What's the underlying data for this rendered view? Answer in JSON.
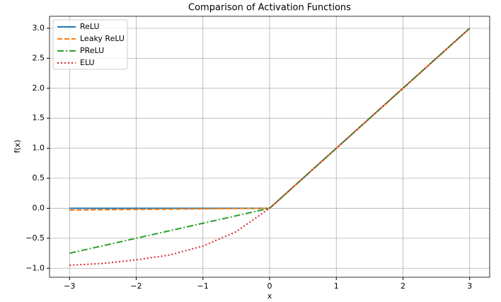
{
  "chart_data": {
    "type": "line",
    "title": "Comparison of Activation Functions",
    "x_label": "x",
    "y_label": "f(x)",
    "x": [
      -3,
      -2.5,
      -2,
      -1.5,
      -1,
      -0.5,
      0,
      1,
      2,
      3
    ],
    "series": [
      {
        "name": "ReLU",
        "color": "#1f77b4",
        "style": "solid",
        "values": [
          0,
          0,
          0,
          0,
          0,
          0,
          0,
          1,
          2,
          3
        ]
      },
      {
        "name": "Leaky ReLU",
        "color": "#ff7f0e",
        "style": "dashed",
        "values": [
          -0.03,
          -0.025,
          -0.02,
          -0.015,
          -0.01,
          -0.005,
          0,
          1,
          2,
          3
        ]
      },
      {
        "name": "PReLU",
        "color": "#2ca02c",
        "style": "dashdot",
        "values": [
          -0.75,
          -0.625,
          -0.5,
          -0.375,
          -0.25,
          -0.125,
          0,
          1,
          2,
          3
        ]
      },
      {
        "name": "ELU",
        "color": "#d62728",
        "style": "dotted",
        "values": [
          -0.95,
          -0.92,
          -0.86,
          -0.78,
          -0.63,
          -0.39,
          0,
          1,
          2,
          3
        ]
      }
    ],
    "xlim": [
      -3.3,
      3.3
    ],
    "xticks": [
      {
        "value": -3,
        "label": "−3"
      },
      {
        "value": -2,
        "label": "−2"
      },
      {
        "value": -1,
        "label": "−1"
      },
      0,
      1,
      2,
      3
    ],
    "ylim": [
      -1.15,
      3.2
    ],
    "yticks": [
      {
        "value": -1,
        "label": "−1.0"
      },
      {
        "value": -0.5,
        "label": "−0.5"
      },
      {
        "value": 0,
        "label": "0.0"
      },
      0.5,
      {
        "value": 1,
        "label": "1.0"
      },
      1.5,
      {
        "value": 2,
        "label": "2.0"
      },
      2.5,
      {
        "value": 3,
        "label": "3.0"
      }
    ],
    "grid": true,
    "legend": "upper-left"
  }
}
